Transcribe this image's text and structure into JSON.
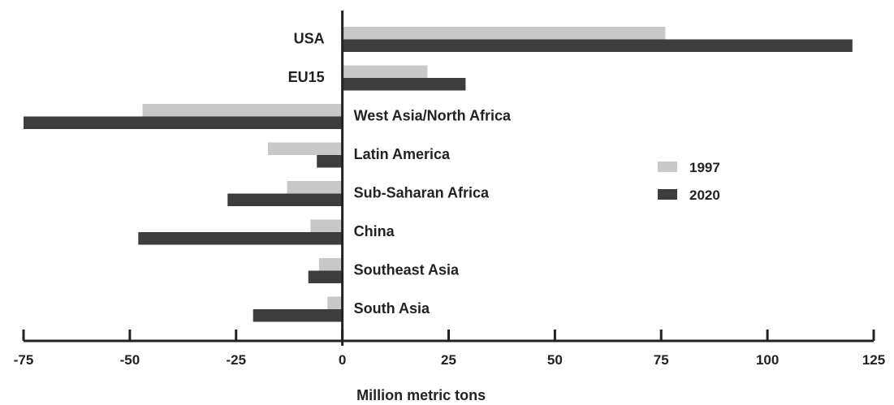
{
  "chart_data": {
    "type": "bar",
    "orientation": "horizontal",
    "categories": [
      "USA",
      "EU15",
      "West Asia/North Africa",
      "Latin America",
      "Sub-Saharan Africa",
      "China",
      "Southeast Asia",
      "South Asia"
    ],
    "series": [
      {
        "name": "1997",
        "values": [
          76,
          20,
          -47,
          -17.5,
          -13,
          -7.5,
          -5.5,
          -3.5
        ],
        "color": "#c8c8c8"
      },
      {
        "name": "2020",
        "values": [
          120,
          29,
          -75,
          -6,
          -27,
          -48,
          -8,
          -21
        ],
        "color": "#3d3d3d"
      }
    ],
    "xlabel": "Million metric tons",
    "ylabel": "",
    "xlim": [
      -75,
      125
    ],
    "xticks": [
      -75,
      -50,
      -25,
      0,
      25,
      50,
      75,
      100,
      125
    ],
    "xtick_labels": [
      "-75",
      "-50",
      "-25",
      "0",
      "25",
      "50",
      "75",
      "100",
      "125"
    ],
    "legend_position": "right",
    "grid": false
  }
}
